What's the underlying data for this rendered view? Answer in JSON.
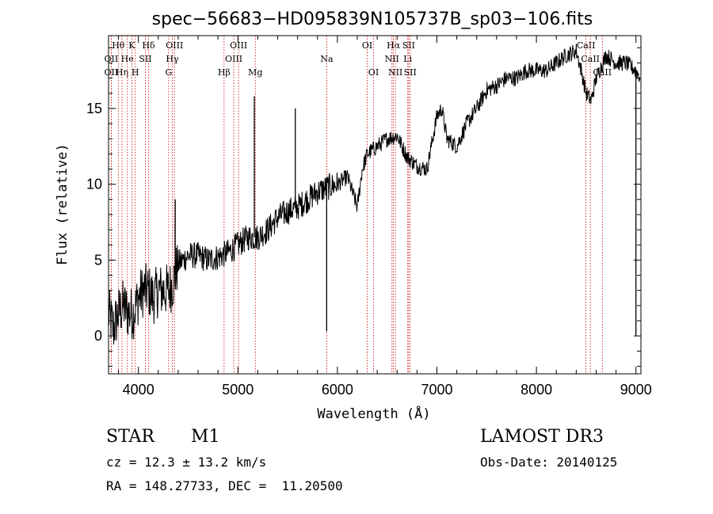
{
  "chart_data": {
    "type": "line",
    "title": "spec−56683−HD095839N105737B_sp03−106.fits",
    "xlabel": "Wavelength (Å)",
    "ylabel": "Flux (relative)",
    "xlim": [
      3700,
      9050
    ],
    "ylim": [
      -2.5,
      19.8
    ],
    "x_ticks": [
      4000,
      5000,
      6000,
      7000,
      8000,
      9000
    ],
    "y_ticks": [
      0,
      5,
      10,
      15
    ],
    "series": [
      {
        "name": "spectrum",
        "color": "#000000",
        "anchors": [
          [
            3700,
            1.5
          ],
          [
            3750,
            0.5
          ],
          [
            3800,
            1.5
          ],
          [
            3850,
            2.0
          ],
          [
            3900,
            1.5
          ],
          [
            3950,
            1.5
          ],
          [
            4000,
            2.5
          ],
          [
            4050,
            3.0
          ],
          [
            4100,
            3.0
          ],
          [
            4150,
            2.5
          ],
          [
            4200,
            3.0
          ],
          [
            4250,
            3.0
          ],
          [
            4300,
            3.0
          ],
          [
            4350,
            3.5
          ],
          [
            4400,
            4.8
          ],
          [
            4450,
            5.0
          ],
          [
            4500,
            5.3
          ],
          [
            4600,
            5.3
          ],
          [
            4700,
            5.0
          ],
          [
            4800,
            5.2
          ],
          [
            4900,
            5.5
          ],
          [
            5000,
            6.0
          ],
          [
            5100,
            6.5
          ],
          [
            5200,
            6.5
          ],
          [
            5300,
            7.0
          ],
          [
            5400,
            7.8
          ],
          [
            5500,
            8.2
          ],
          [
            5600,
            8.5
          ],
          [
            5700,
            9.0
          ],
          [
            5800,
            9.5
          ],
          [
            5900,
            9.8
          ],
          [
            6000,
            10.0
          ],
          [
            6100,
            10.5
          ],
          [
            6200,
            8.5
          ],
          [
            6250,
            11.0
          ],
          [
            6300,
            12.0
          ],
          [
            6400,
            12.5
          ],
          [
            6500,
            13.0
          ],
          [
            6600,
            13.2
          ],
          [
            6700,
            11.8
          ],
          [
            6800,
            11.2
          ],
          [
            6900,
            11.0
          ],
          [
            7000,
            14.5
          ],
          [
            7050,
            15.0
          ],
          [
            7100,
            13.0
          ],
          [
            7200,
            12.5
          ],
          [
            7300,
            14.0
          ],
          [
            7400,
            15.0
          ],
          [
            7500,
            16.2
          ],
          [
            7600,
            16.5
          ],
          [
            7700,
            17.0
          ],
          [
            7800,
            17.0
          ],
          [
            7900,
            17.5
          ],
          [
            8000,
            17.5
          ],
          [
            8100,
            17.5
          ],
          [
            8200,
            18.0
          ],
          [
            8300,
            18.5
          ],
          [
            8400,
            18.8
          ],
          [
            8450,
            17.5
          ],
          [
            8500,
            16.0
          ],
          [
            8550,
            15.5
          ],
          [
            8600,
            17.0
          ],
          [
            8700,
            18.5
          ],
          [
            8800,
            18.0
          ],
          [
            8900,
            18.0
          ],
          [
            9000,
            17.5
          ],
          [
            9050,
            17.0
          ]
        ],
        "spikes": [
          {
            "x": 4370,
            "y": 9.0
          },
          {
            "x": 5165,
            "y": 15.8
          },
          {
            "x": 5577,
            "y": 15.0
          },
          {
            "x": 5892,
            "y": 0.3
          },
          {
            "x": 9000,
            "y": 0.0
          }
        ]
      }
    ],
    "lines": [
      {
        "x": 3798,
        "label": "Hθ",
        "tier": 1
      },
      {
        "x": 3727,
        "label": "OII",
        "tier": 2
      },
      {
        "x": 3727,
        "label": "OII",
        "tier": 3
      },
      {
        "x": 3835,
        "label": "Hη",
        "tier": 3
      },
      {
        "x": 3889,
        "label": "He",
        "tier": 2
      },
      {
        "x": 3934,
        "label": "K",
        "tier": 1
      },
      {
        "x": 3969,
        "label": "H",
        "tier": 3
      },
      {
        "x": 4070,
        "label": "SII",
        "tier": 2
      },
      {
        "x": 4102,
        "label": "Hδ",
        "tier": 1
      },
      {
        "x": 4304,
        "label": "G",
        "tier": 3
      },
      {
        "x": 4341,
        "label": "Hγ",
        "tier": 2
      },
      {
        "x": 4363,
        "label": "OIII",
        "tier": 1
      },
      {
        "x": 4861,
        "label": "Hβ",
        "tier": 3
      },
      {
        "x": 4959,
        "label": "OIII",
        "tier": 2
      },
      {
        "x": 5007,
        "label": "OIII",
        "tier": 1
      },
      {
        "x": 5175,
        "label": "Mg",
        "tier": 3
      },
      {
        "x": 5893,
        "label": "Na",
        "tier": 2
      },
      {
        "x": 6300,
        "label": "OI",
        "tier": 1
      },
      {
        "x": 6363,
        "label": "OI",
        "tier": 3
      },
      {
        "x": 6548,
        "label": "NII",
        "tier": 2
      },
      {
        "x": 6563,
        "label": "Hα",
        "tier": 1
      },
      {
        "x": 6583,
        "label": "NII",
        "tier": 3
      },
      {
        "x": 6707,
        "label": "Li",
        "tier": 2
      },
      {
        "x": 6716,
        "label": "SII",
        "tier": 1
      },
      {
        "x": 6731,
        "label": "SII",
        "tier": 3
      },
      {
        "x": 8498,
        "label": "CaII",
        "tier": 1
      },
      {
        "x": 8542,
        "label": "CaII",
        "tier": 2
      },
      {
        "x": 8662,
        "label": "CaII",
        "tier": 3
      }
    ]
  },
  "info": {
    "object_class": "STAR",
    "subclass": "M1",
    "catalog": "LAMOST DR3",
    "redshift": "cz = 12.3 ± 13.2 km/s",
    "obs_date": "Obs-Date: 20140125",
    "coords": "RA = 148.27733, DEC =  11.20500"
  },
  "colors": {
    "line_marker": "#cc0000",
    "spectrum": "#000000",
    "axes": "#000000"
  }
}
